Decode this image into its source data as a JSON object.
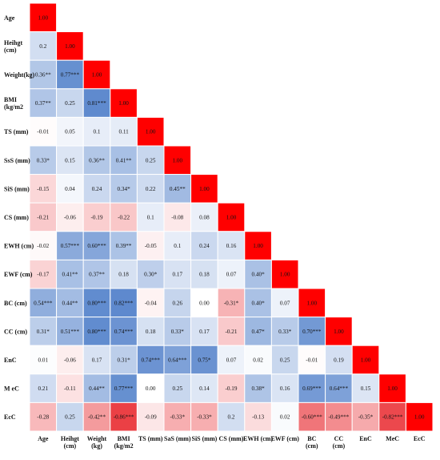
{
  "chart_data": {
    "type": "heatmap",
    "title": "",
    "variables": [
      {
        "row": [
          "Age"
        ],
        "col": [
          "Age"
        ]
      },
      {
        "row": [
          "Heihgt",
          "(cm)"
        ],
        "col": [
          "Heihgt",
          "(cm)"
        ]
      },
      {
        "row": [
          "Weight(kg)"
        ],
        "col": [
          "Weight",
          "(kg)"
        ]
      },
      {
        "row": [
          "BMI",
          "(kg/m2"
        ],
        "col": [
          "BMI",
          "(kg/m2"
        ]
      },
      {
        "row": [
          "TS (mm)"
        ],
        "col": [
          "TS (mm)"
        ]
      },
      {
        "row": [
          "SsS (mm)"
        ],
        "col": [
          "SaS (mm)"
        ]
      },
      {
        "row": [
          "SiS (mm)"
        ],
        "col": [
          "SiS (mm)"
        ]
      },
      {
        "row": [
          "CS (mm)"
        ],
        "col": [
          "CS (mm)"
        ]
      },
      {
        "row": [
          "EWH (cm)"
        ],
        "col": [
          "EWH (cm)"
        ]
      },
      {
        "row": [
          "EWF (cm)"
        ],
        "col": [
          "EWF (cm)"
        ]
      },
      {
        "row": [
          "BC (cm)"
        ],
        "col": [
          "BC",
          "(cm)"
        ]
      },
      {
        "row": [
          "CC (cm)"
        ],
        "col": [
          "CC",
          "(cm)"
        ]
      },
      {
        "row": [
          "EnC"
        ],
        "col": [
          "EnC"
        ]
      },
      {
        "row": [
          "M eC"
        ],
        "col": [
          "MeC"
        ]
      },
      {
        "row": [
          "EcC"
        ],
        "col": [
          "EcC"
        ]
      }
    ],
    "value_range": [
      -1,
      1
    ],
    "color_scale": {
      "negative": "#e8242a",
      "zero": "#ffffff",
      "positive": "#3e72c4",
      "diagonal": "#ff0000"
    },
    "cells": [
      [
        [
          "1.00",
          1
        ]
      ],
      [
        [
          "0.2",
          0.2
        ],
        [
          "1.00",
          1
        ]
      ],
      [
        [
          "0.36**",
          0.36
        ],
        [
          "0.77***",
          0.77
        ],
        [
          "1.00",
          1
        ]
      ],
      [
        [
          "0.37**",
          0.37
        ],
        [
          "0.25",
          0.25
        ],
        [
          "0.81***",
          0.81
        ],
        [
          "1.00",
          1
        ]
      ],
      [
        [
          "-0.01",
          -0.01
        ],
        [
          "0.05",
          0.05
        ],
        [
          "0.1",
          0.1
        ],
        [
          "0.11",
          0.11
        ],
        [
          "1.00",
          1
        ]
      ],
      [
        [
          "0.33*",
          0.33
        ],
        [
          "0.15",
          0.15
        ],
        [
          "0.36**",
          0.36
        ],
        [
          "0.41**",
          0.41
        ],
        [
          "0.25",
          0.25
        ],
        [
          "1.00",
          1
        ]
      ],
      [
        [
          "-0.15",
          -0.15
        ],
        [
          "0.04",
          0.04
        ],
        [
          "0.24",
          0.24
        ],
        [
          "0.34*",
          0.34
        ],
        [
          "0.22",
          0.22
        ],
        [
          "0.45**",
          0.45
        ],
        [
          "1.00",
          1
        ]
      ],
      [
        [
          "-0.21",
          -0.21
        ],
        [
          "-0.06",
          -0.06
        ],
        [
          "-0.19",
          -0.19
        ],
        [
          "-0.22",
          -0.22
        ],
        [
          "0.1",
          0.1
        ],
        [
          "-0.08",
          -0.08
        ],
        [
          "0.08",
          0.08
        ],
        [
          "1.00",
          1
        ]
      ],
      [
        [
          "-0.02",
          -0.02
        ],
        [
          "0.57***",
          0.57
        ],
        [
          "0.60***",
          0.6
        ],
        [
          "0.39**",
          0.39
        ],
        [
          "-0.05",
          -0.05
        ],
        [
          "0.1",
          0.1
        ],
        [
          "0.24",
          0.24
        ],
        [
          "0.16",
          0.16
        ],
        [
          "1.00",
          1
        ]
      ],
      [
        [
          "-0.17",
          -0.17
        ],
        [
          "0.41**",
          0.41
        ],
        [
          "0.37**",
          0.37
        ],
        [
          "0.18",
          0.18
        ],
        [
          "0.30*",
          0.3
        ],
        [
          "0.17",
          0.17
        ],
        [
          "0.18",
          0.18
        ],
        [
          "0.07",
          0.07
        ],
        [
          "0.40*",
          0.4
        ],
        [
          "1.00",
          1
        ]
      ],
      [
        [
          "0.54***",
          0.54
        ],
        [
          "0.44**",
          0.44
        ],
        [
          "0.80***",
          0.8
        ],
        [
          "0.82***",
          0.82
        ],
        [
          "-0.04",
          -0.04
        ],
        [
          "0.26",
          0.26
        ],
        [
          "0.00",
          0.0
        ],
        [
          "-0.31*",
          -0.31
        ],
        [
          "0.40*",
          0.4
        ],
        [
          "0.07",
          0.07
        ],
        [
          "1.00",
          1
        ]
      ],
      [
        [
          "0.31*",
          0.31
        ],
        [
          "0.51***",
          0.51
        ],
        [
          "0.80***",
          0.8
        ],
        [
          "0.74***",
          0.74
        ],
        [
          "0.18",
          0.18
        ],
        [
          "0.33*",
          0.33
        ],
        [
          "0.17",
          0.17
        ],
        [
          "-0.21",
          -0.21
        ],
        [
          "0.47*",
          0.47
        ],
        [
          "0.33*",
          0.33
        ],
        [
          "0.70***",
          0.7
        ],
        [
          "1.00",
          1
        ]
      ],
      [
        [
          "0.01",
          0.01
        ],
        [
          "-0.06",
          -0.06
        ],
        [
          "0.17",
          0.17
        ],
        [
          "0.31*",
          0.31
        ],
        [
          "0.74***",
          0.74
        ],
        [
          "0.64***",
          0.64
        ],
        [
          "0.75*",
          0.75
        ],
        [
          "0.07",
          0.07
        ],
        [
          "0.02",
          0.02
        ],
        [
          "0.25",
          0.25
        ],
        [
          "-0.01",
          -0.01
        ],
        [
          "0.19",
          0.19
        ],
        [
          "1.00",
          1
        ]
      ],
      [
        [
          "0.21",
          0.21
        ],
        [
          "-0.11",
          -0.11
        ],
        [
          "0.44**",
          0.44
        ],
        [
          "0.77***",
          0.77
        ],
        [
          "0.00",
          0.0
        ],
        [
          "0.25",
          0.25
        ],
        [
          "0.14",
          0.14
        ],
        [
          "-0.19",
          -0.19
        ],
        [
          "0.38*",
          0.38
        ],
        [
          "0.16",
          0.16
        ],
        [
          "0.69***",
          0.69
        ],
        [
          "0.64***",
          0.64
        ],
        [
          "0.15",
          0.15
        ],
        [
          "1.00",
          1
        ]
      ],
      [
        [
          "-0.28",
          -0.28
        ],
        [
          "0.25",
          0.25
        ],
        [
          "-0.42**",
          -0.42
        ],
        [
          "-0.86***",
          -0.86
        ],
        [
          "-0.09",
          -0.09
        ],
        [
          "-0.33*",
          -0.33
        ],
        [
          "-0.33*",
          -0.33
        ],
        [
          "0.2",
          0.2
        ],
        [
          "-0.13",
          -0.13
        ],
        [
          "0.02",
          0.02
        ],
        [
          "-0.60***",
          -0.6
        ],
        [
          "-0.49***",
          -0.49
        ],
        [
          "-0.35*",
          -0.35
        ],
        [
          "-0.82***",
          -0.82
        ],
        [
          "1.00",
          1
        ]
      ]
    ]
  }
}
